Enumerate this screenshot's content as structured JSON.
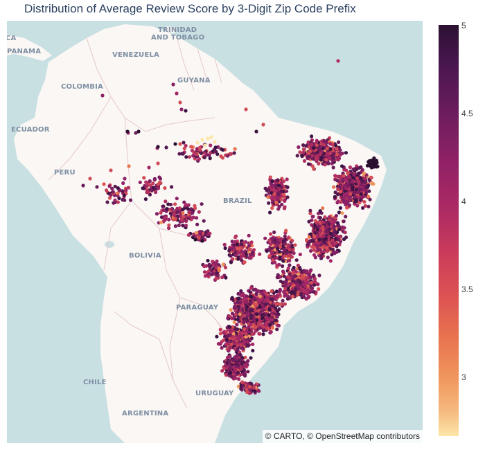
{
  "title": "Distribution of Average Review Score by 3-Digit Zip Code Prefix",
  "attribution": "© CARTO, © OpenStreetMap contributors",
  "map": {
    "center": "Brazil",
    "country_labels": [
      "CA",
      "PANAMA",
      "TRINIDAD",
      "AND TOBAGO",
      "VENEZUELA",
      "GUYANA",
      "COLOMBIA",
      "ECUADOR",
      "PERU",
      "BRAZIL",
      "BOLIVIA",
      "PARAGUAY",
      "CHILE",
      "URUGUAY",
      "ARGENTINA"
    ],
    "colors": {
      "ocean": "#c9e0e3",
      "land": "#faf7f4",
      "border": "#e6c9cc"
    }
  },
  "colorbar": {
    "min": 2.75,
    "max": 5,
    "ticks": [
      "5",
      "4.5",
      "4",
      "3.5",
      "3"
    ],
    "tick_values": [
      5,
      4.5,
      4,
      3.5,
      3
    ],
    "colorscale": [
      "#fde6a8",
      "#f6ba7e",
      "#f0975e",
      "#e8734f",
      "#dd5353",
      "#c93b5b",
      "#ad2a63",
      "#8f2166",
      "#6e1d5e",
      "#4a1650",
      "#2b1131"
    ]
  }
}
